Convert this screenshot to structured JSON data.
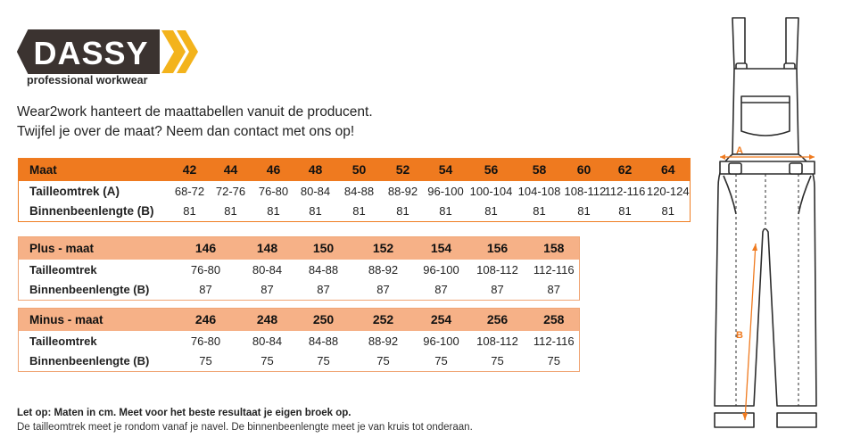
{
  "brand": {
    "name": "DASSY",
    "tagline": "professional workwear"
  },
  "intro": {
    "line1": "Wear2work hanteert de maattabellen vanuit de producent.",
    "line2": "Twijfel je over de maat? Neem dan contact met ons op!"
  },
  "table_main": {
    "header_label": "Maat",
    "sizes": [
      "42",
      "44",
      "46",
      "48",
      "50",
      "52",
      "54",
      "56",
      "58",
      "60",
      "62",
      "64"
    ],
    "rows": [
      {
        "label": "Tailleomtrek (A)",
        "values": [
          "68-72",
          "72-76",
          "76-80",
          "80-84",
          "84-88",
          "88-92",
          "96-100",
          "100-104",
          "104-108",
          "108-112",
          "112-116",
          "120-124"
        ]
      },
      {
        "label": "Binnenbeenlengte (B)",
        "values": [
          "81",
          "81",
          "81",
          "81",
          "81",
          "81",
          "81",
          "81",
          "81",
          "81",
          "81",
          "81"
        ]
      }
    ]
  },
  "table_plus": {
    "header_label": "Plus - maat",
    "sizes": [
      "146",
      "148",
      "150",
      "152",
      "154",
      "156",
      "158"
    ],
    "rows": [
      {
        "label": "Tailleomtrek",
        "values": [
          "76-80",
          "80-84",
          "84-88",
          "88-92",
          "96-100",
          "108-112",
          "112-116"
        ]
      },
      {
        "label": "Binnenbeenlengte (B)",
        "values": [
          "87",
          "87",
          "87",
          "87",
          "87",
          "87",
          "87"
        ]
      }
    ]
  },
  "table_minus": {
    "header_label": "Minus - maat",
    "sizes": [
      "246",
      "248",
      "250",
      "252",
      "254",
      "256",
      "258"
    ],
    "rows": [
      {
        "label": "Tailleomtrek",
        "values": [
          "76-80",
          "80-84",
          "84-88",
          "88-92",
          "96-100",
          "108-112",
          "112-116"
        ]
      },
      {
        "label": "Binnenbeenlengte (B)",
        "values": [
          "75",
          "75",
          "75",
          "75",
          "75",
          "75",
          "75"
        ]
      }
    ]
  },
  "notes": {
    "bold": "Let op: Maten in cm. Meet voor het beste resultaat je eigen broek op.",
    "regular": "De tailleomtrek meet je rondom vanaf je navel. De binnenbeenlengte meet je van kruis tot onderaan."
  },
  "diagram": {
    "label_a": "A",
    "label_b": "B"
  },
  "colors": {
    "accent": "#ef7a1f",
    "accent_light": "#f6b187",
    "logo_dark": "#3b3330",
    "logo_yellow": "#f3b31c"
  }
}
